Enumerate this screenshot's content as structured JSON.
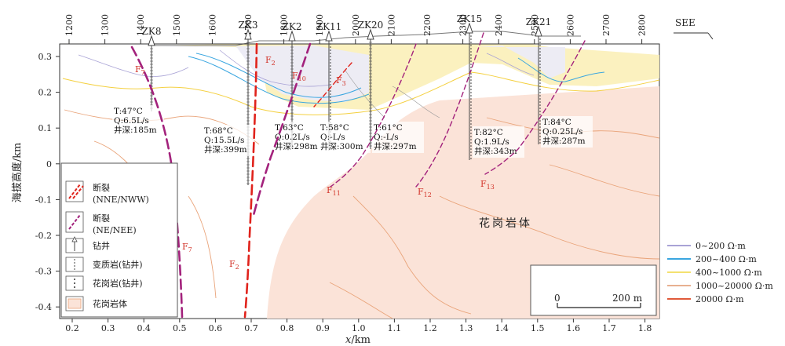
{
  "top_axis": {
    "ticks": [
      "1200",
      "1300",
      "1400",
      "1500",
      "1600",
      "1700",
      "1800",
      "1900",
      "2000",
      "2100",
      "2200",
      "2300",
      "2400",
      "2500",
      "2600",
      "2700",
      "2800"
    ],
    "direction_label": "SEE"
  },
  "x_axis": {
    "label_italic": "x",
    "label_unit": "/km",
    "ticks": [
      "0.2",
      "0.3",
      "0.4",
      "0.5",
      "0.6",
      "0.7",
      "0.8",
      "0.9",
      "1.0",
      "1.1",
      "1.2",
      "1.3",
      "1.4",
      "1.5",
      "1.6",
      "1.7",
      "1.8"
    ]
  },
  "y_axis": {
    "label": "海拔高度/km",
    "ticks": [
      "0.3",
      "0.2",
      "0.1",
      "0",
      "-0.1",
      "-0.2",
      "-0.3",
      "-0.4"
    ]
  },
  "wells": [
    {
      "name": "ZK8"
    },
    {
      "name": "ZK3"
    },
    {
      "name": "ZK2"
    },
    {
      "name": "ZK11"
    },
    {
      "name": "ZK20"
    },
    {
      "name": "ZK15"
    },
    {
      "name": "ZK21"
    }
  ],
  "well_info": [
    {
      "temp": "T:47°C",
      "flow": "Q:6.5L/s",
      "depth": "井深:185m"
    },
    {
      "temp": "T:68°C",
      "flow": "Q:15.5L/s",
      "depth": "井深:399m"
    },
    {
      "temp": "T:63°C",
      "flow": "Q:0.2L/s",
      "depth": "井深:298m"
    },
    {
      "temp": "T:58°C",
      "flow": "Q:-L/s",
      "depth": "井深:300m"
    },
    {
      "temp": "T:61°C",
      "flow": "Q:-L/s",
      "depth": "井深:297m"
    },
    {
      "temp": "T:82°C",
      "flow": "Q:1.9L/s",
      "depth": "井深:343m"
    },
    {
      "temp": "T:84°C",
      "flow": "Q:0.25L/s",
      "depth": "井深:287m"
    }
  ],
  "faults": {
    "letter": "F",
    "labels": [
      {
        "sub": "7"
      },
      {
        "sub": "7"
      },
      {
        "sub": "2"
      },
      {
        "sub": "2"
      },
      {
        "sub": "10"
      },
      {
        "sub": "3"
      },
      {
        "sub": "11"
      },
      {
        "sub": "12"
      },
      {
        "sub": "13"
      }
    ]
  },
  "granite_label": "花岗岩体",
  "legend_left": {
    "fault_nne_1": "断裂",
    "fault_nne_2": "(NNE/NWW)",
    "fault_ne_1": "断裂",
    "fault_ne_2": "(NE/NEE)",
    "well": "钻井",
    "metamorphic": "变质岩(钻井)",
    "granite_well": "花岗岩(钻井)",
    "granite_body": "花岗岩体"
  },
  "legend_right": [
    {
      "label": "0~200 Ω·m",
      "color": "#a9a3d6"
    },
    {
      "label": "200~400 Ω·m",
      "color": "#3aa6e0"
    },
    {
      "label": "400~1000 Ω·m",
      "color": "#f4e170"
    },
    {
      "label": "1000~20000 Ω·m",
      "color": "#e8b090"
    },
    {
      "label": "20000 Ω·m",
      "color": "#e05a3a"
    }
  ],
  "colors": {
    "fault_nne": "#e0231c",
    "fault_ne": "#a3227c",
    "granite_fill": "#fbe3d8",
    "contour_orange": "#e9a47a"
  },
  "scale_bar": {
    "start": "0",
    "end": "200 m"
  }
}
